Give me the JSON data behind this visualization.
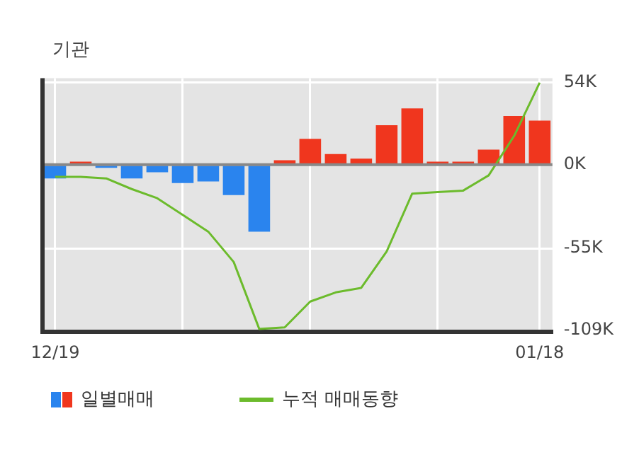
{
  "chart_data": {
    "type": "bar",
    "title": "기관",
    "categories": [
      "12/19",
      null,
      null,
      null,
      null,
      null,
      null,
      null,
      null,
      null,
      null,
      null,
      null,
      null,
      null,
      null,
      null,
      null,
      null,
      "01/18"
    ],
    "series": [
      {
        "name": "일별매매",
        "values": [
          -9,
          2,
          -2,
          -9,
          -5,
          -12,
          -11,
          -20,
          -44,
          3,
          17,
          7,
          4,
          26,
          37,
          2,
          2,
          10,
          32,
          29
        ],
        "colors": [
          "#2a84ee",
          "#f0361e",
          "#2a84ee",
          "#2a84ee",
          "#2a84ee",
          "#2a84ee",
          "#2a84ee",
          "#2a84ee",
          "#2a84ee",
          "#f0361e",
          "#f0361e",
          "#f0361e",
          "#f0361e",
          "#f0361e",
          "#f0361e",
          "#f0361e",
          "#f0361e",
          "#f0361e",
          "#f0361e",
          "#f0361e"
        ]
      },
      {
        "name": "누적 매매동향",
        "type": "line",
        "color": "#6cbb2c",
        "values": [
          -8,
          -8,
          -9,
          -16,
          -22,
          -33,
          -44,
          -64,
          -108,
          -107,
          -90,
          -84,
          -81,
          -57,
          -19,
          -18,
          -17,
          -7,
          19,
          54
        ]
      }
    ],
    "ylim": [
      -110,
      57
    ],
    "yticks": [
      {
        "value": 54,
        "label": "54K"
      },
      {
        "value": 0,
        "label": "0K"
      },
      {
        "value": -55,
        "label": "-55K"
      },
      {
        "value": -109,
        "label": "-109K"
      }
    ],
    "grid": true,
    "legend": "bottom",
    "marker": "none"
  }
}
